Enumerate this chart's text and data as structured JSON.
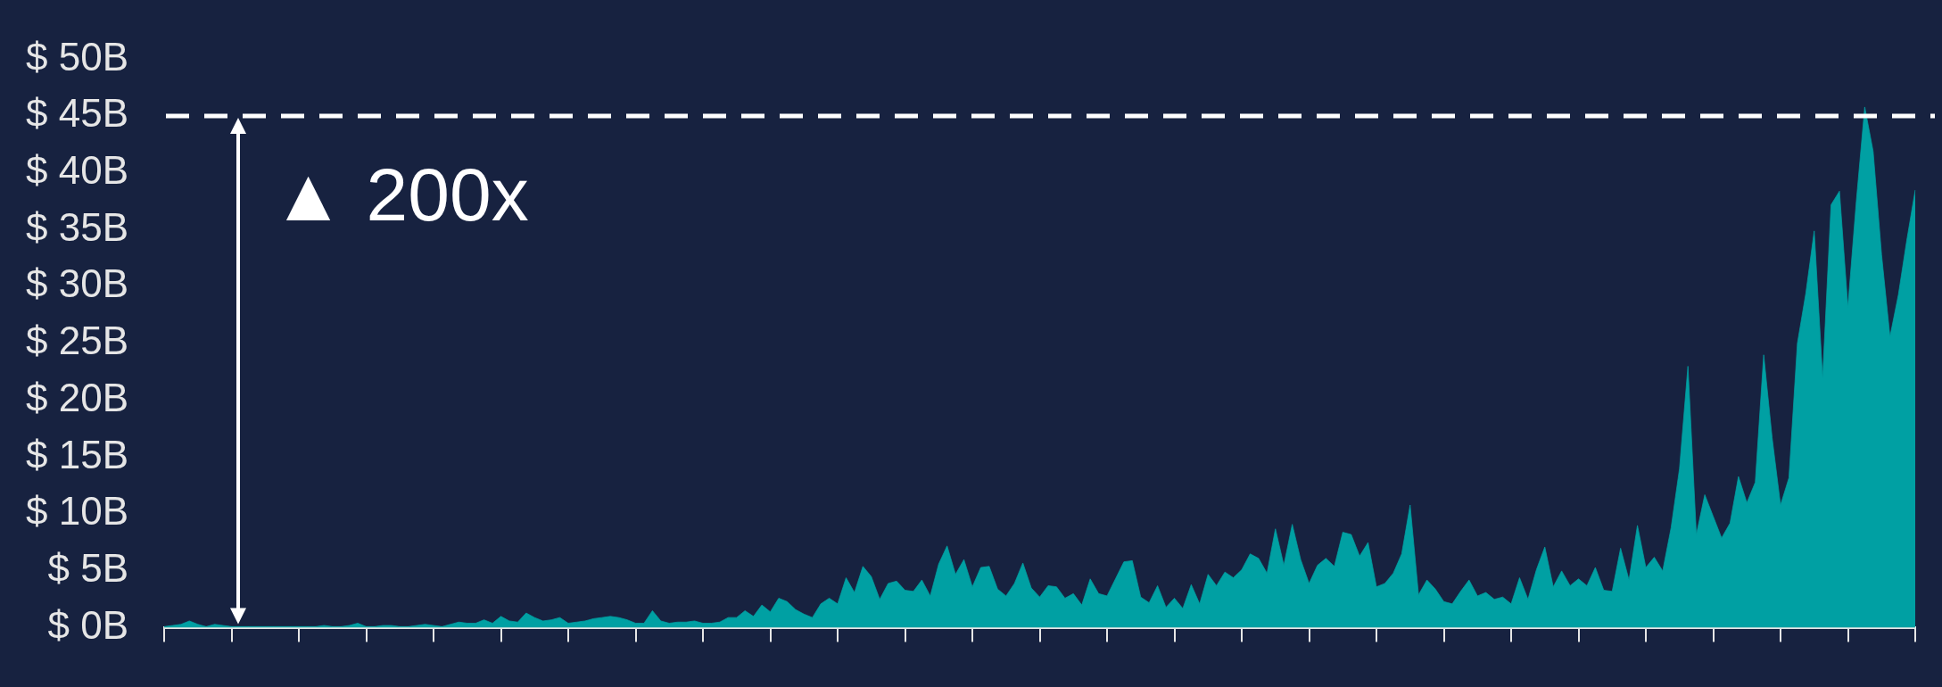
{
  "chart_data": {
    "type": "area",
    "color": "#00a0a3",
    "categories": [
      null,
      null,
      null,
      null,
      null,
      null,
      null,
      null,
      null,
      null,
      null,
      null,
      null,
      null,
      null,
      null,
      null,
      null,
      null,
      null,
      null,
      null,
      null,
      null,
      null,
      null,
      null,
      null,
      null,
      null,
      null,
      null,
      null,
      null,
      null,
      null,
      null,
      null,
      null,
      null,
      null,
      null,
      null,
      null,
      null,
      null,
      null,
      null,
      null,
      null,
      null,
      null,
      null,
      null,
      null,
      null,
      null,
      null,
      null,
      null,
      null,
      null,
      null,
      null,
      null,
      null,
      null,
      null,
      null,
      null,
      null,
      null,
      null,
      null,
      null,
      null,
      null,
      null,
      null,
      null,
      null,
      null,
      null,
      null,
      null,
      null,
      null,
      null,
      null,
      null,
      null,
      null,
      null,
      null,
      null,
      null,
      null,
      null,
      null,
      null,
      null,
      null,
      null,
      null,
      null,
      null,
      null,
      null,
      null,
      null,
      null,
      null,
      null,
      null,
      null,
      null,
      null,
      null,
      null,
      null,
      null,
      null,
      null,
      null,
      null,
      null,
      null,
      null,
      null,
      null,
      null,
      null,
      null,
      null,
      null,
      null,
      null,
      null,
      null,
      null,
      null,
      null,
      null,
      null,
      null,
      null,
      null,
      null,
      null,
      null,
      null,
      null,
      null,
      null,
      null,
      null,
      null,
      null,
      null,
      null,
      null,
      null,
      null,
      null,
      null,
      null,
      null,
      null,
      null,
      null,
      null,
      null,
      null,
      null,
      null,
      null,
      null,
      null,
      null,
      null,
      null,
      null,
      null,
      null,
      null,
      null,
      null,
      null,
      null,
      null,
      null,
      null,
      null,
      null,
      null,
      null,
      null,
      null,
      null,
      null,
      null,
      null,
      null,
      null,
      null,
      null,
      null,
      null,
      null
    ],
    "values": [
      0.1,
      0.2,
      0.3,
      0.6,
      0.3,
      0.1,
      0.3,
      0.2,
      0.1,
      0.1,
      0.1,
      0.1,
      0.1,
      0.1,
      0.1,
      0.1,
      0.1,
      0.1,
      0.1,
      0.2,
      0.1,
      0.1,
      0.2,
      0.4,
      0.1,
      0.1,
      0.2,
      0.2,
      0.1,
      0.1,
      0.2,
      0.3,
      0.2,
      0.1,
      0.3,
      0.5,
      0.4,
      0.4,
      0.7,
      0.4,
      1.0,
      0.6,
      0.5,
      1.3,
      0.9,
      0.6,
      0.7,
      0.9,
      0.4,
      0.5,
      0.6,
      0.8,
      0.9,
      1.0,
      0.9,
      0.7,
      0.4,
      0.4,
      1.5,
      0.6,
      0.4,
      0.5,
      0.5,
      0.6,
      0.4,
      0.4,
      0.5,
      0.9,
      0.9,
      1.5,
      1.0,
      2.0,
      1.4,
      2.6,
      2.3,
      1.6,
      1.2,
      0.9,
      2.1,
      2.6,
      2.1,
      4.4,
      3.1,
      5.4,
      4.5,
      2.5,
      3.9,
      4.1,
      3.3,
      3.2,
      4.2,
      2.8,
      5.6,
      7.2,
      4.7,
      6.0,
      3.6,
      5.3,
      5.4,
      3.4,
      2.8,
      3.9,
      5.7,
      3.5,
      2.7,
      3.7,
      3.6,
      2.6,
      3.0,
      2.0,
      4.3,
      3.0,
      2.8,
      4.3,
      5.8,
      5.9,
      2.7,
      2.2,
      3.7,
      1.8,
      2.6,
      1.7,
      3.8,
      2.1,
      4.7,
      3.7,
      4.9,
      4.4,
      5.1,
      6.5,
      6.1,
      4.8,
      8.7,
      5.5,
      9.1,
      6.0,
      3.9,
      5.5,
      6.1,
      5.4,
      8.4,
      8.2,
      6.3,
      7.5,
      3.6,
      3.9,
      4.8,
      6.5,
      10.8,
      2.9,
      4.2,
      3.4,
      2.3,
      2.1,
      3.2,
      4.2,
      2.8,
      3.1,
      2.5,
      2.7,
      2.1,
      4.4,
      2.5,
      5.1,
      7.1,
      3.6,
      5.0,
      3.7,
      4.3,
      3.7,
      5.3,
      3.3,
      3.2,
      7.0,
      4.2,
      9.0,
      5.3,
      6.2,
      5.0,
      8.8,
      14.0,
      23.0,
      8.2,
      11.7,
      9.8,
      7.9,
      9.2,
      13.3,
      11.0,
      12.8,
      24.0,
      16.7,
      10.8,
      13.2,
      25.0,
      29.4,
      34.9,
      22.0,
      37.2,
      38.4,
      28.2,
      37.5,
      45.8,
      41.9,
      32.8,
      25.6,
      29.3,
      34.1,
      38.5
    ],
    "ylim": [
      0,
      50
    ],
    "yticks": [
      {
        "value": 0,
        "label": "$ 0B"
      },
      {
        "value": 5,
        "label": "$ 5B"
      },
      {
        "value": 10,
        "label": "$ 10B"
      },
      {
        "value": 15,
        "label": "$ 15B"
      },
      {
        "value": 20,
        "label": "$ 20B"
      },
      {
        "value": 25,
        "label": "$ 25B"
      },
      {
        "value": 30,
        "label": "$ 30B"
      },
      {
        "value": 35,
        "label": "$ 35B"
      },
      {
        "value": 40,
        "label": "$ 40B"
      },
      {
        "value": 45,
        "label": "$ 45B"
      },
      {
        "value": 50,
        "label": "$ 50B"
      }
    ],
    "tick_labels": "y",
    "ref_lines": [
      {
        "axis": "y",
        "value": 45,
        "color": "#ffffff",
        "line_style": "dashed"
      }
    ],
    "annotations": [
      "▲ 200x"
    ]
  }
}
